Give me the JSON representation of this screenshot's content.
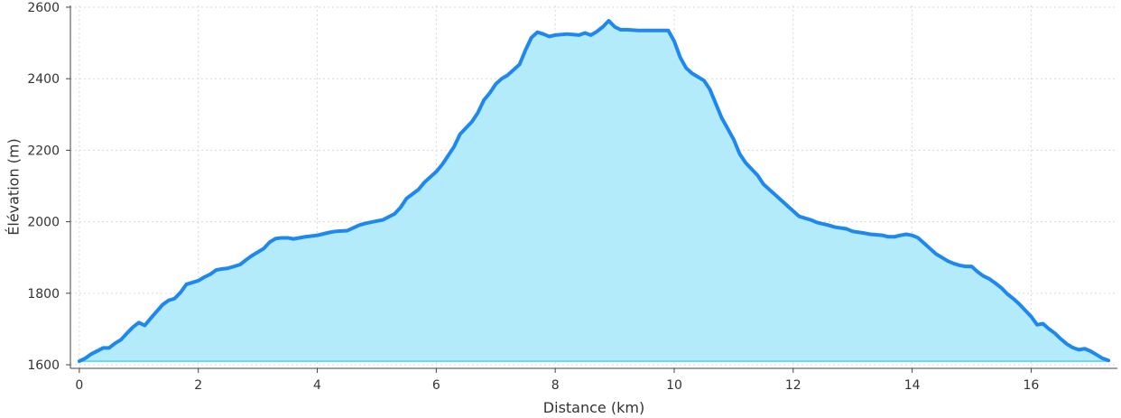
{
  "chart_data": {
    "type": "area",
    "title": "",
    "xlabel": "Distance (km)",
    "ylabel": "Élévation (m)",
    "xlim": [
      -0.15,
      17.45
    ],
    "ylim": [
      1590,
      2605
    ],
    "x_ticks": [
      0,
      2,
      4,
      6,
      8,
      10,
      12,
      14,
      16
    ],
    "y_ticks": [
      1600,
      1800,
      2000,
      2200,
      2400,
      2600
    ],
    "grid": true,
    "colors": {
      "line": "#1e88f0",
      "fill": "#b3ebfa",
      "baseline": "#6fd6f2"
    },
    "series": [
      {
        "x": [
          0,
          0.1,
          0.2,
          0.4,
          0.5,
          0.6,
          0.7,
          0.8,
          0.9,
          1.0,
          1.1,
          1.2,
          1.4,
          1.5,
          1.6,
          1.7,
          1.8,
          2.0,
          2.1,
          2.2,
          2.3,
          2.4,
          2.5,
          2.7,
          2.8,
          2.9,
          3.1,
          3.2,
          3.3,
          3.4,
          3.5,
          3.6,
          3.8,
          3.9,
          4.0,
          4.2,
          4.3,
          4.5,
          4.7,
          4.8,
          5.0,
          5.1,
          5.3,
          5.4,
          5.5,
          5.7,
          5.8,
          6.0,
          6.1,
          6.2,
          6.3,
          6.4,
          6.6,
          6.7,
          6.8,
          6.9,
          7.0,
          7.1,
          7.2,
          7.4,
          7.5,
          7.6,
          7.7,
          7.8,
          7.9,
          8.0,
          8.2,
          8.4,
          8.5,
          8.6,
          8.7,
          8.8,
          8.9,
          9.0,
          9.1,
          9.2,
          9.4,
          9.5,
          9.6,
          9.8,
          9.9,
          10.0,
          10.1,
          10.2,
          10.3,
          10.5,
          10.6,
          10.7,
          10.8,
          11.0,
          11.1,
          11.2,
          11.4,
          11.5,
          11.6,
          11.7,
          11.8,
          12.0,
          12.1,
          12.2,
          12.3,
          12.4,
          12.6,
          12.7,
          12.9,
          13.0,
          13.2,
          13.3,
          13.5,
          13.6,
          13.7,
          13.8,
          13.9,
          14.0,
          14.1,
          14.2,
          14.3,
          14.4,
          14.5,
          14.6,
          14.7,
          14.8,
          14.9,
          15.0,
          15.1,
          15.2,
          15.3,
          15.4,
          15.5,
          15.6,
          15.7,
          15.8,
          16.0,
          16.1,
          16.2,
          16.3,
          16.4,
          16.5,
          16.6,
          16.7,
          16.8,
          16.9,
          17.0,
          17.1,
          17.2,
          17.3
        ],
        "values": [
          1610,
          1618,
          1630,
          1647,
          1647,
          1660,
          1670,
          1688,
          1705,
          1718,
          1710,
          1730,
          1768,
          1780,
          1785,
          1802,
          1825,
          1835,
          1845,
          1853,
          1865,
          1868,
          1870,
          1880,
          1893,
          1905,
          1925,
          1943,
          1953,
          1955,
          1955,
          1952,
          1958,
          1960,
          1962,
          1970,
          1973,
          1975,
          1990,
          1995,
          2002,
          2005,
          2022,
          2040,
          2065,
          2090,
          2110,
          2140,
          2160,
          2185,
          2210,
          2245,
          2280,
          2305,
          2340,
          2360,
          2385,
          2400,
          2410,
          2440,
          2480,
          2515,
          2530,
          2525,
          2518,
          2522,
          2525,
          2522,
          2528,
          2522,
          2532,
          2545,
          2562,
          2545,
          2537,
          2537,
          2535,
          2535,
          2535,
          2535,
          2535,
          2505,
          2460,
          2430,
          2415,
          2395,
          2370,
          2330,
          2290,
          2230,
          2190,
          2165,
          2130,
          2105,
          2090,
          2075,
          2060,
          2030,
          2015,
          2010,
          2005,
          1998,
          1990,
          1985,
          1980,
          1973,
          1968,
          1965,
          1962,
          1958,
          1958,
          1962,
          1965,
          1962,
          1955,
          1940,
          1925,
          1910,
          1900,
          1890,
          1883,
          1878,
          1875,
          1875,
          1860,
          1848,
          1840,
          1828,
          1815,
          1798,
          1785,
          1770,
          1735,
          1712,
          1715,
          1700,
          1688,
          1672,
          1658,
          1648,
          1642,
          1645,
          1638,
          1628,
          1618,
          1612
        ]
      }
    ]
  }
}
